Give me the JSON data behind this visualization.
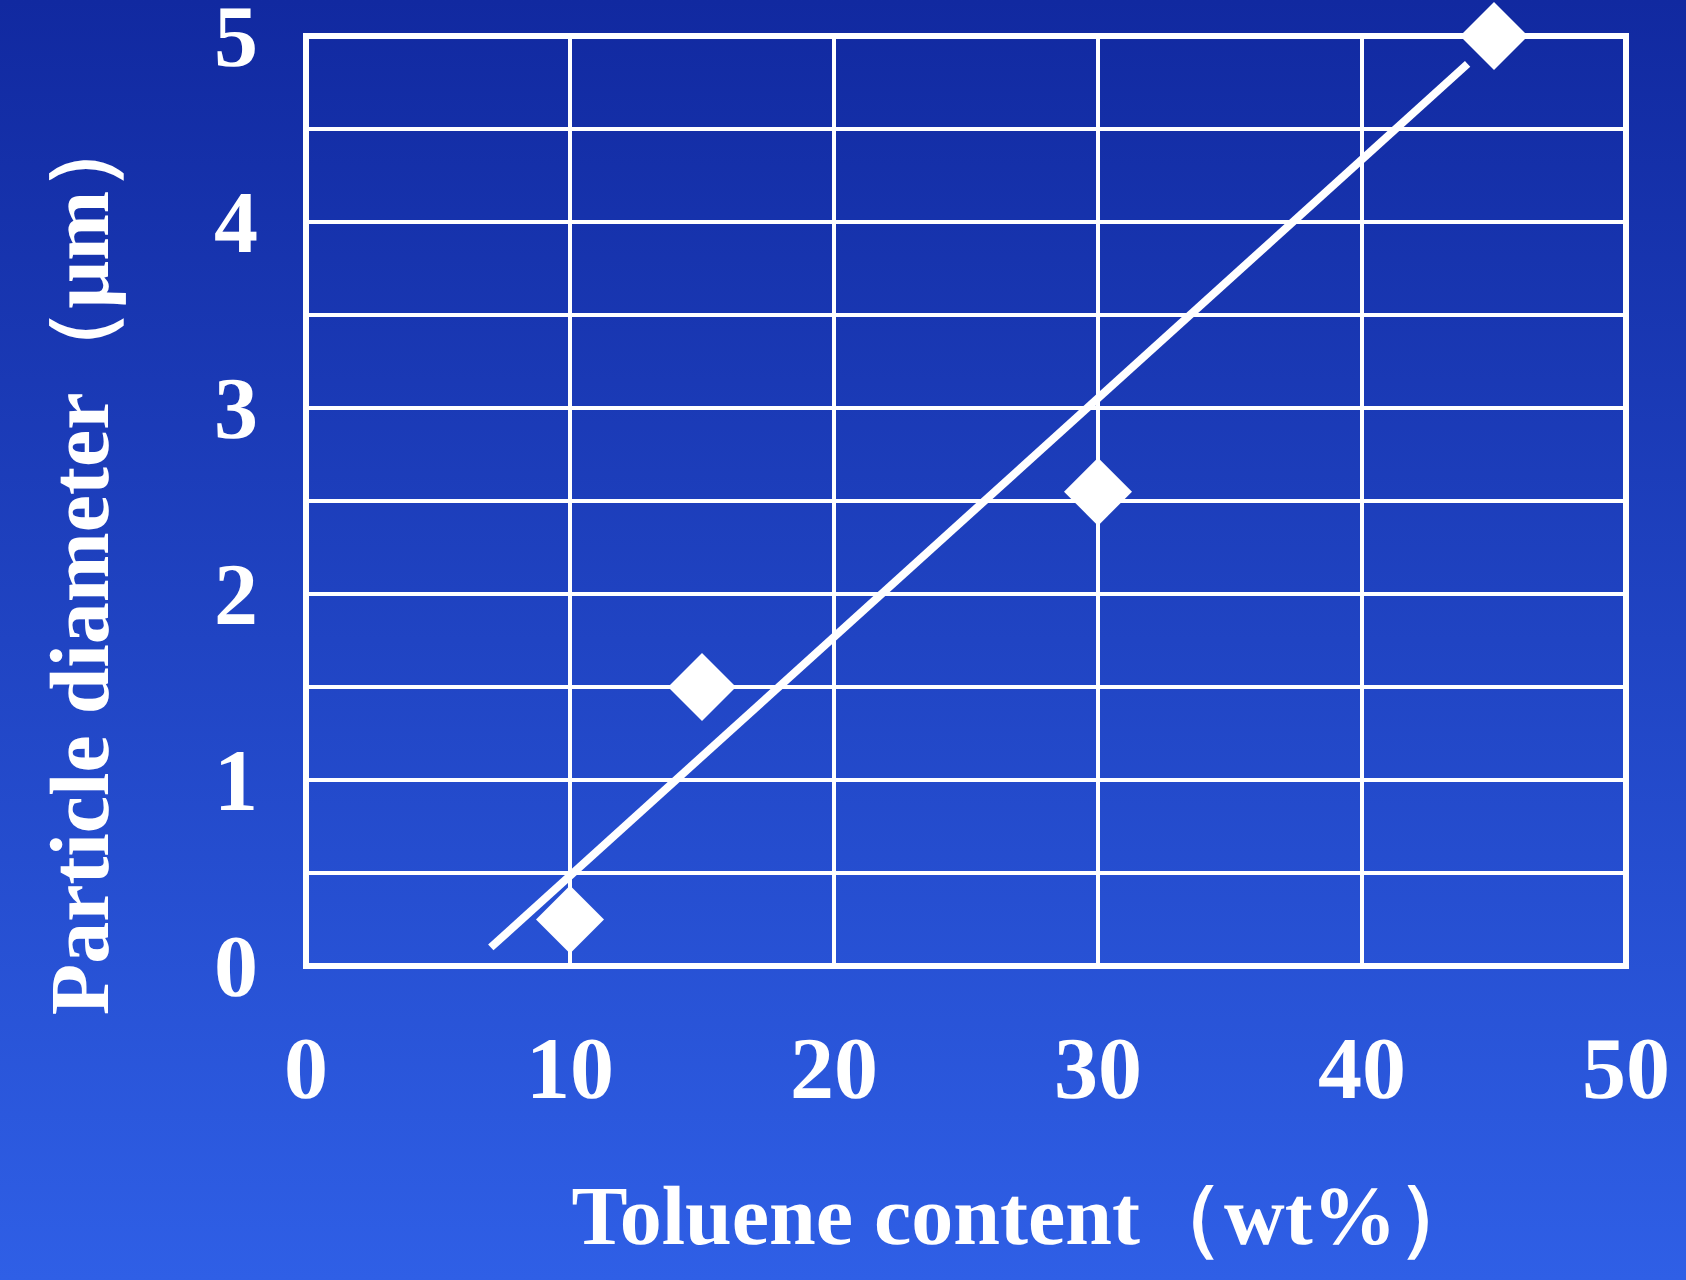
{
  "chart_data": {
    "type": "scatter",
    "xlabel": "Toluene content（wt%）",
    "ylabel": "Particle diameter（μm）",
    "xlim": [
      0,
      50
    ],
    "ylim": [
      0,
      5
    ],
    "xticks": [
      0,
      10,
      20,
      30,
      40,
      50
    ],
    "yticks": [
      0,
      {
        "value": 0.5,
        "label": null
      },
      1,
      {
        "value": 1.5,
        "label": null
      },
      2,
      {
        "value": 2.5,
        "label": null
      },
      3,
      {
        "value": 3.5,
        "label": null
      },
      4,
      {
        "value": 4.5,
        "label": null
      },
      5
    ],
    "grid": true,
    "marker": "diamond",
    "series": [
      {
        "x": [
          10,
          15,
          30,
          45
        ],
        "values": [
          0.25,
          1.5,
          2.55,
          5.0
        ],
        "color": "#ffffff"
      },
      {
        "type": "line",
        "x": [
          7,
          44
        ],
        "values": [
          0.1,
          4.85
        ],
        "color": "#ffffff",
        "marker": "none"
      }
    ]
  }
}
